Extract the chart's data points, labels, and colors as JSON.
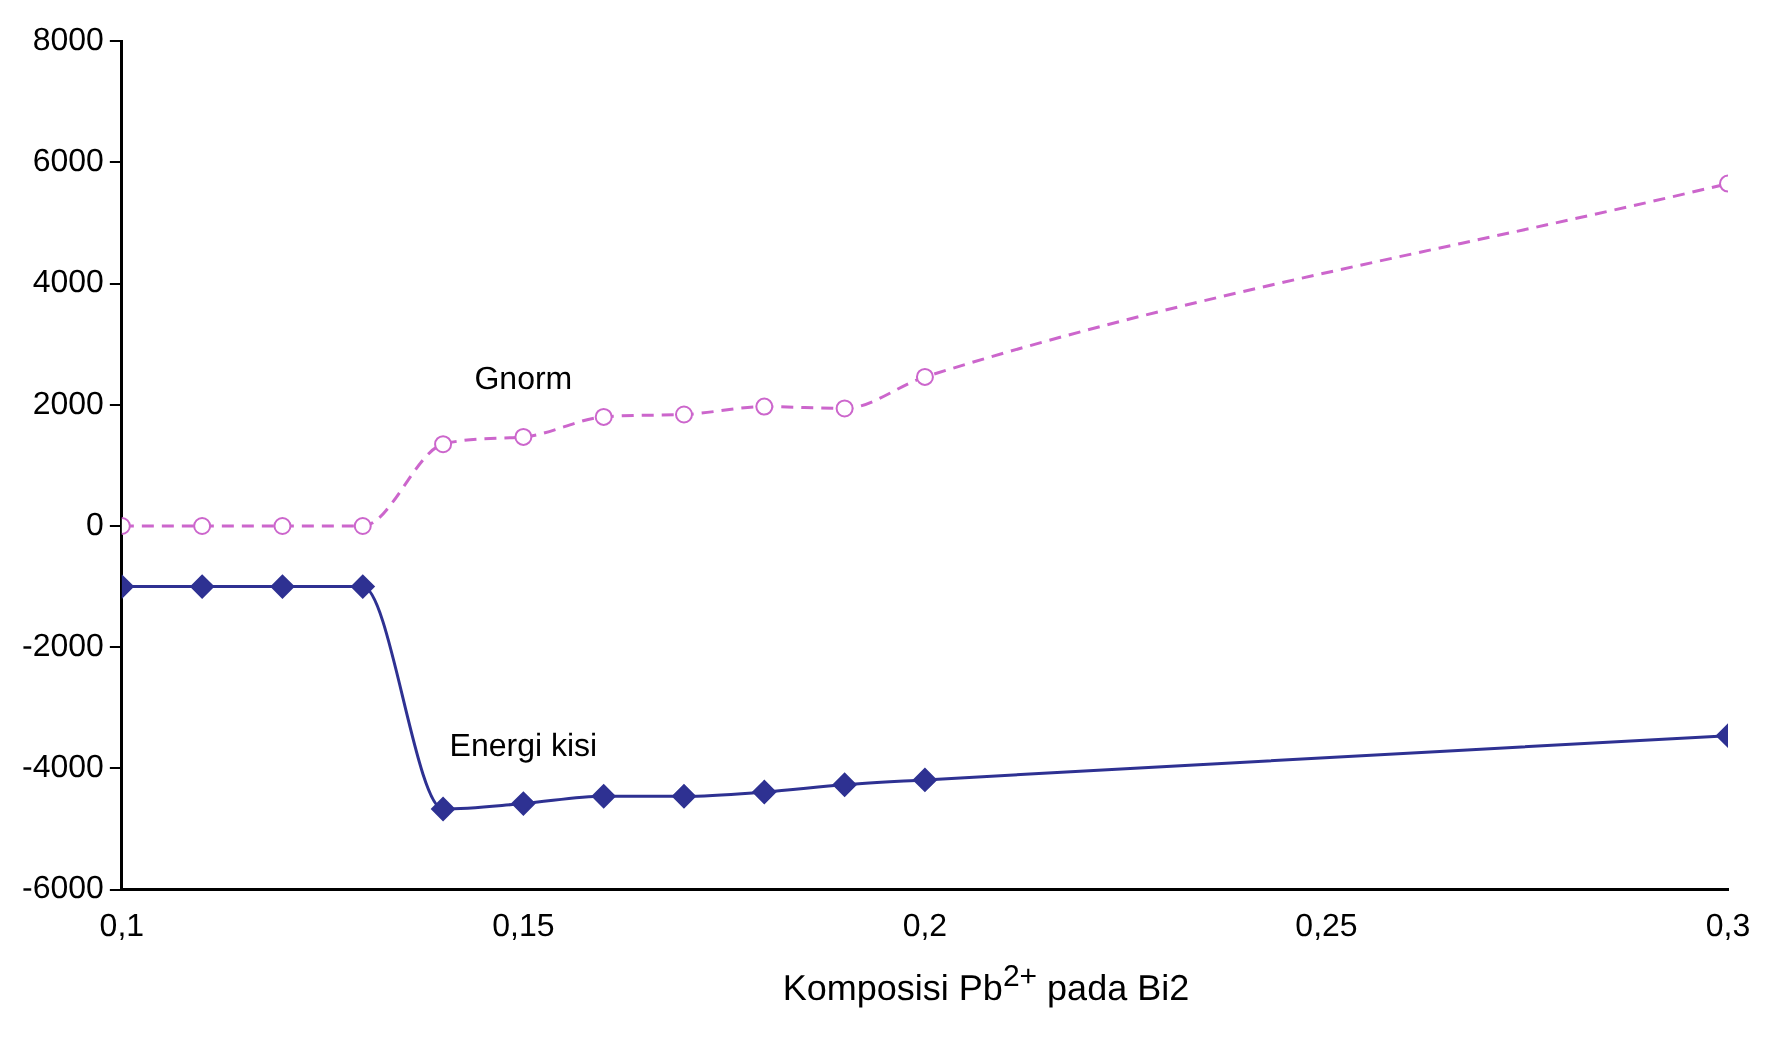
{
  "chart_data": {
    "type": "line",
    "xlabel": "Komposisi Pb$^{2+}$ pada  Bi2",
    "x": [
      0.1,
      0.11,
      0.12,
      0.13,
      0.14,
      0.15,
      0.16,
      0.17,
      0.18,
      0.19,
      0.2,
      0.3
    ],
    "series": [
      {
        "name": "Gnorm",
        "color": "#cc66cc",
        "marker": "circle",
        "line_style": "dashed",
        "values": [
          0,
          0,
          0,
          0,
          1350,
          1470,
          1800,
          1840,
          1970,
          1940,
          2460,
          5650
        ]
      },
      {
        "name": "Energi kisi",
        "color": "#2e3192",
        "marker": "diamond",
        "line_style": "solid",
        "values": [
          -1000,
          -1000,
          -1000,
          -1000,
          -4670,
          -4580,
          -4460,
          -4460,
          -4390,
          -4270,
          -4190,
          -3460
        ]
      }
    ],
    "xlim": [
      0.1,
      0.3
    ],
    "xticks": [
      {
        "value": 0.1,
        "label": "0,1"
      },
      {
        "value": 0.15,
        "label": "0,15"
      },
      {
        "value": 0.2,
        "label": "0,2"
      },
      {
        "value": 0.25,
        "label": "0,25"
      },
      {
        "value": 0.3,
        "label": "0,3"
      }
    ],
    "ylim": [
      -6000,
      8000
    ],
    "yticks": [
      -6000,
      -4000,
      -2000,
      0,
      2000,
      4000,
      6000,
      8000
    ],
    "grid": false,
    "legend": false
  }
}
